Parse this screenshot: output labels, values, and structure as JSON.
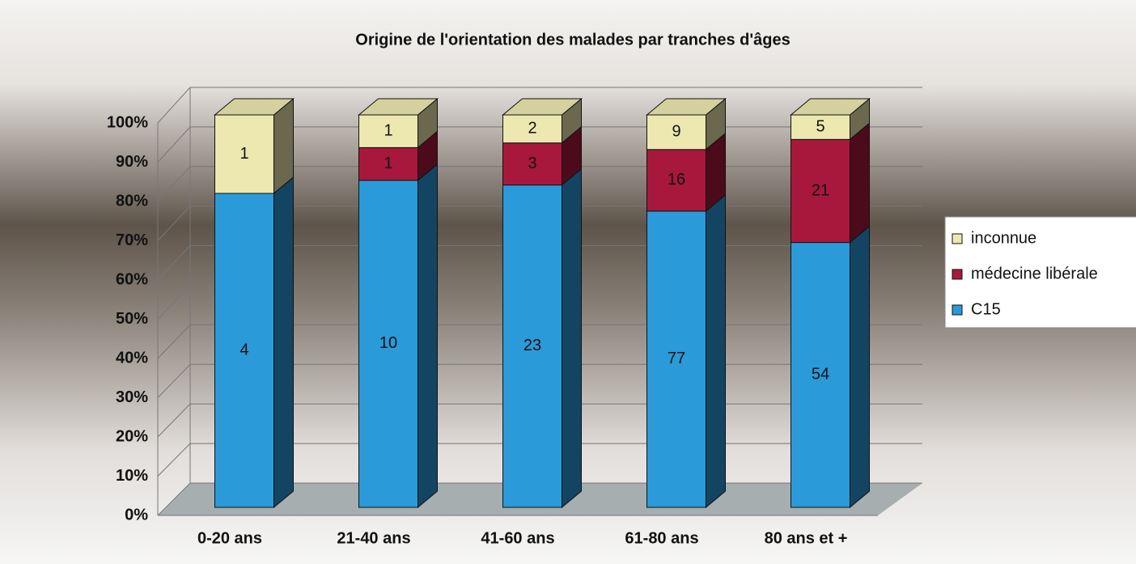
{
  "chart_data": {
    "type": "bar",
    "stacking": "percent",
    "title": "Origine de l'orientation des malades par tranches d'âges",
    "categories": [
      "0-20 ans",
      "21-40 ans",
      "41-60 ans",
      "61-80 ans",
      "80 ans et +"
    ],
    "series": [
      {
        "name": "C15",
        "color": "#2b9ad9",
        "values": [
          4,
          10,
          23,
          77,
          54
        ]
      },
      {
        "name": "médecine libérale",
        "color": "#a8183c",
        "values": [
          0,
          1,
          3,
          16,
          21
        ]
      },
      {
        "name": "inconnue",
        "color": "#ece8b0",
        "values": [
          1,
          1,
          2,
          9,
          5
        ]
      }
    ],
    "ylim": [
      0,
      100
    ],
    "yticks": [
      {
        "value": 0,
        "label": "0%"
      },
      {
        "value": 10,
        "label": "10%"
      },
      {
        "value": 20,
        "label": "20%"
      },
      {
        "value": 30,
        "label": "30%"
      },
      {
        "value": 40,
        "label": "40%"
      },
      {
        "value": 50,
        "label": "50%"
      },
      {
        "value": 60,
        "label": "60%"
      },
      {
        "value": 70,
        "label": "70%"
      },
      {
        "value": 80,
        "label": "80%"
      },
      {
        "value": 90,
        "label": "90%"
      },
      {
        "value": 100,
        "label": "100%"
      }
    ],
    "grid": true,
    "legend": "right"
  }
}
